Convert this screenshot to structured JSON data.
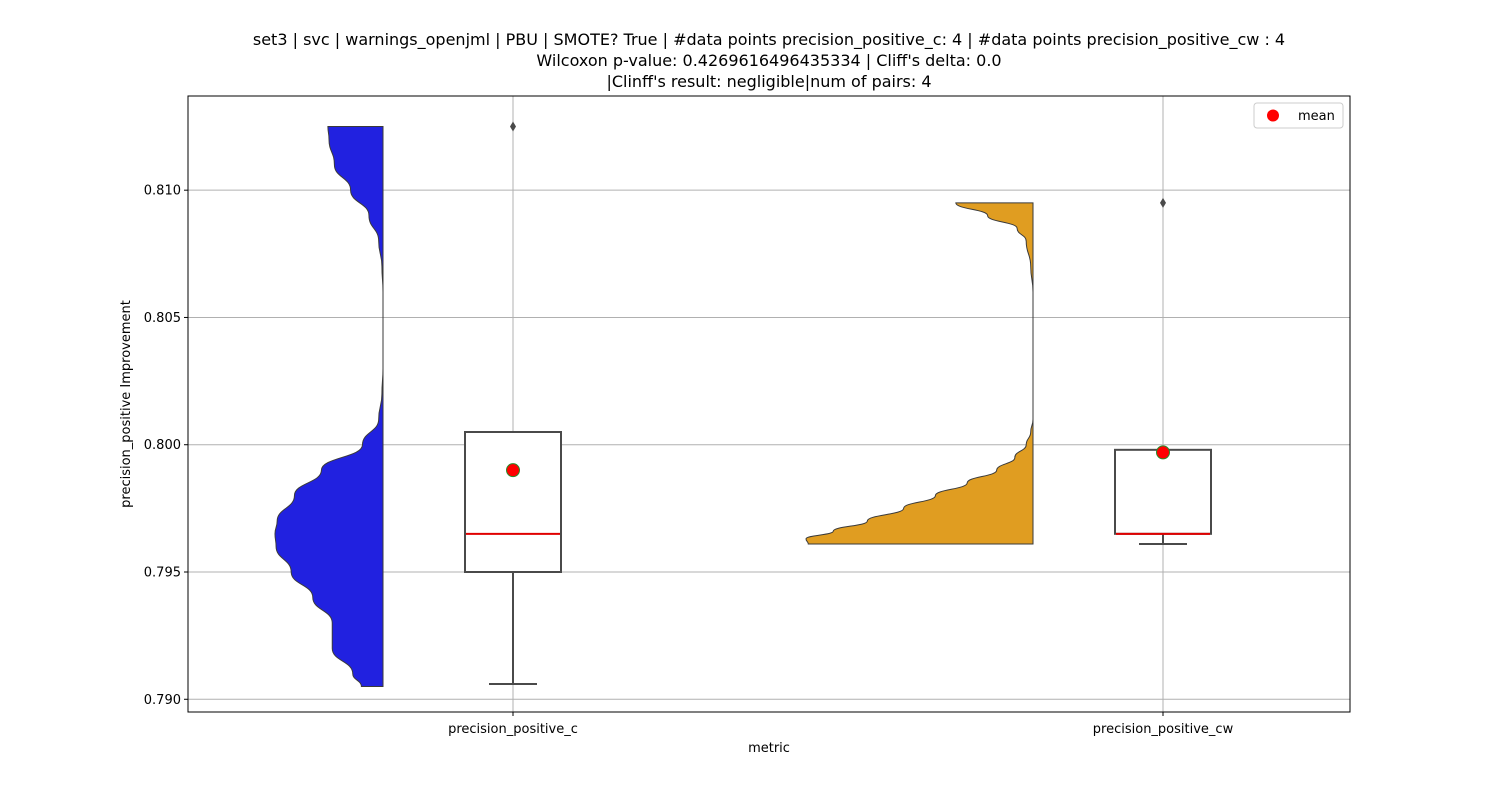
{
  "chart_data": {
    "type": "raincloud",
    "title_lines": [
      "set3 | svc | warnings_openjml | PBU | SMOTE? True | #data points precision_positive_c: 4 | #data points precision_positive_cw : 4",
      "Wilcoxon p-value: 0.4269616496435334 | Cliff's delta: 0.0",
      "|Clinff's result: negligible|num of pairs: 4"
    ],
    "xlabel": "metric",
    "ylabel": "precision_positive Improvement",
    "categories": [
      "precision_positive_c",
      "precision_positive_cw"
    ],
    "ylim": [
      0.7895,
      0.8137
    ],
    "yticks": [
      0.79,
      0.795,
      0.8,
      0.805,
      0.81
    ],
    "ytick_labels": [
      "0.790",
      "0.795",
      "0.800",
      "0.805",
      "0.810"
    ],
    "grid": true,
    "legend": {
      "position": "top-right",
      "entries": [
        "mean"
      ]
    },
    "colors": {
      "violin_c": "#2121E0",
      "violin_cw": "#E09D21",
      "box_edge": "#4a4a4a",
      "median": "#e00000",
      "mean_marker": "#ff0000",
      "mean_edge": "#2a8a2a",
      "grid": "#b0b0b0"
    },
    "series": [
      {
        "category": "precision_positive_c",
        "density_y": [
          0.7905,
          0.791,
          0.792,
          0.793,
          0.794,
          0.795,
          0.796,
          0.7965,
          0.797,
          0.798,
          0.799,
          0.8,
          0.801,
          0.802,
          0.803,
          0.804,
          0.805,
          0.806,
          0.807,
          0.808,
          0.809,
          0.81,
          0.811,
          0.812,
          0.8125
        ],
        "density_w": [
          0.2,
          0.28,
          0.47,
          0.47,
          0.65,
          0.85,
          0.99,
          1.0,
          0.98,
          0.82,
          0.57,
          0.19,
          0.04,
          0.01,
          0.0,
          0.0,
          0.0,
          0.0,
          0.01,
          0.04,
          0.13,
          0.3,
          0.45,
          0.5,
          0.51
        ],
        "box": {
          "q1": 0.795,
          "median": 0.7965,
          "q3": 0.8005,
          "whisker_low": 0.7906,
          "whisker_high": 0.8005
        },
        "mean": 0.799,
        "outliers": [
          0.8125
        ]
      },
      {
        "category": "precision_positive_cw",
        "density_y": [
          0.7961,
          0.7963,
          0.7966,
          0.797,
          0.7975,
          0.798,
          0.7985,
          0.799,
          0.7995,
          0.8,
          0.8005,
          0.801,
          0.802,
          0.803,
          0.804,
          0.805,
          0.806,
          0.807,
          0.808,
          0.8085,
          0.809,
          0.8095
        ],
        "density_w": [
          0.99,
          1.0,
          0.88,
          0.73,
          0.57,
          0.43,
          0.29,
          0.16,
          0.08,
          0.03,
          0.01,
          0.0,
          0.0,
          0.0,
          0.0,
          0.0,
          0.0,
          0.01,
          0.03,
          0.07,
          0.2,
          0.34
        ],
        "box": {
          "q1": 0.7965,
          "median": 0.7965,
          "q3": 0.7998,
          "whisker_low": 0.7961,
          "whisker_high": 0.7998
        },
        "mean": 0.7997,
        "outliers": [
          0.8095
        ]
      }
    ]
  }
}
